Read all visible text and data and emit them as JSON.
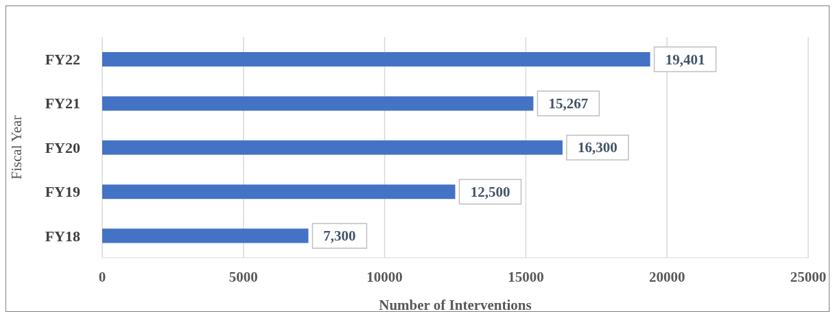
{
  "chart_data": {
    "type": "bar",
    "orientation": "horizontal",
    "xlabel": "Number of Interventions",
    "ylabel": "Fiscal Year",
    "categories": [
      "FY22",
      "FY21",
      "FY20",
      "FY19",
      "FY18"
    ],
    "values": [
      19401,
      15267,
      16300,
      12500,
      7300
    ],
    "value_labels": [
      "19,401",
      "15,267",
      "16,300",
      "12,500",
      "7,300"
    ],
    "color": "#4472c4",
    "xlim": [
      0,
      25000
    ],
    "xticks": [
      0,
      5000,
      10000,
      15000,
      20000,
      25000
    ],
    "grid": "x",
    "legend": false
  }
}
